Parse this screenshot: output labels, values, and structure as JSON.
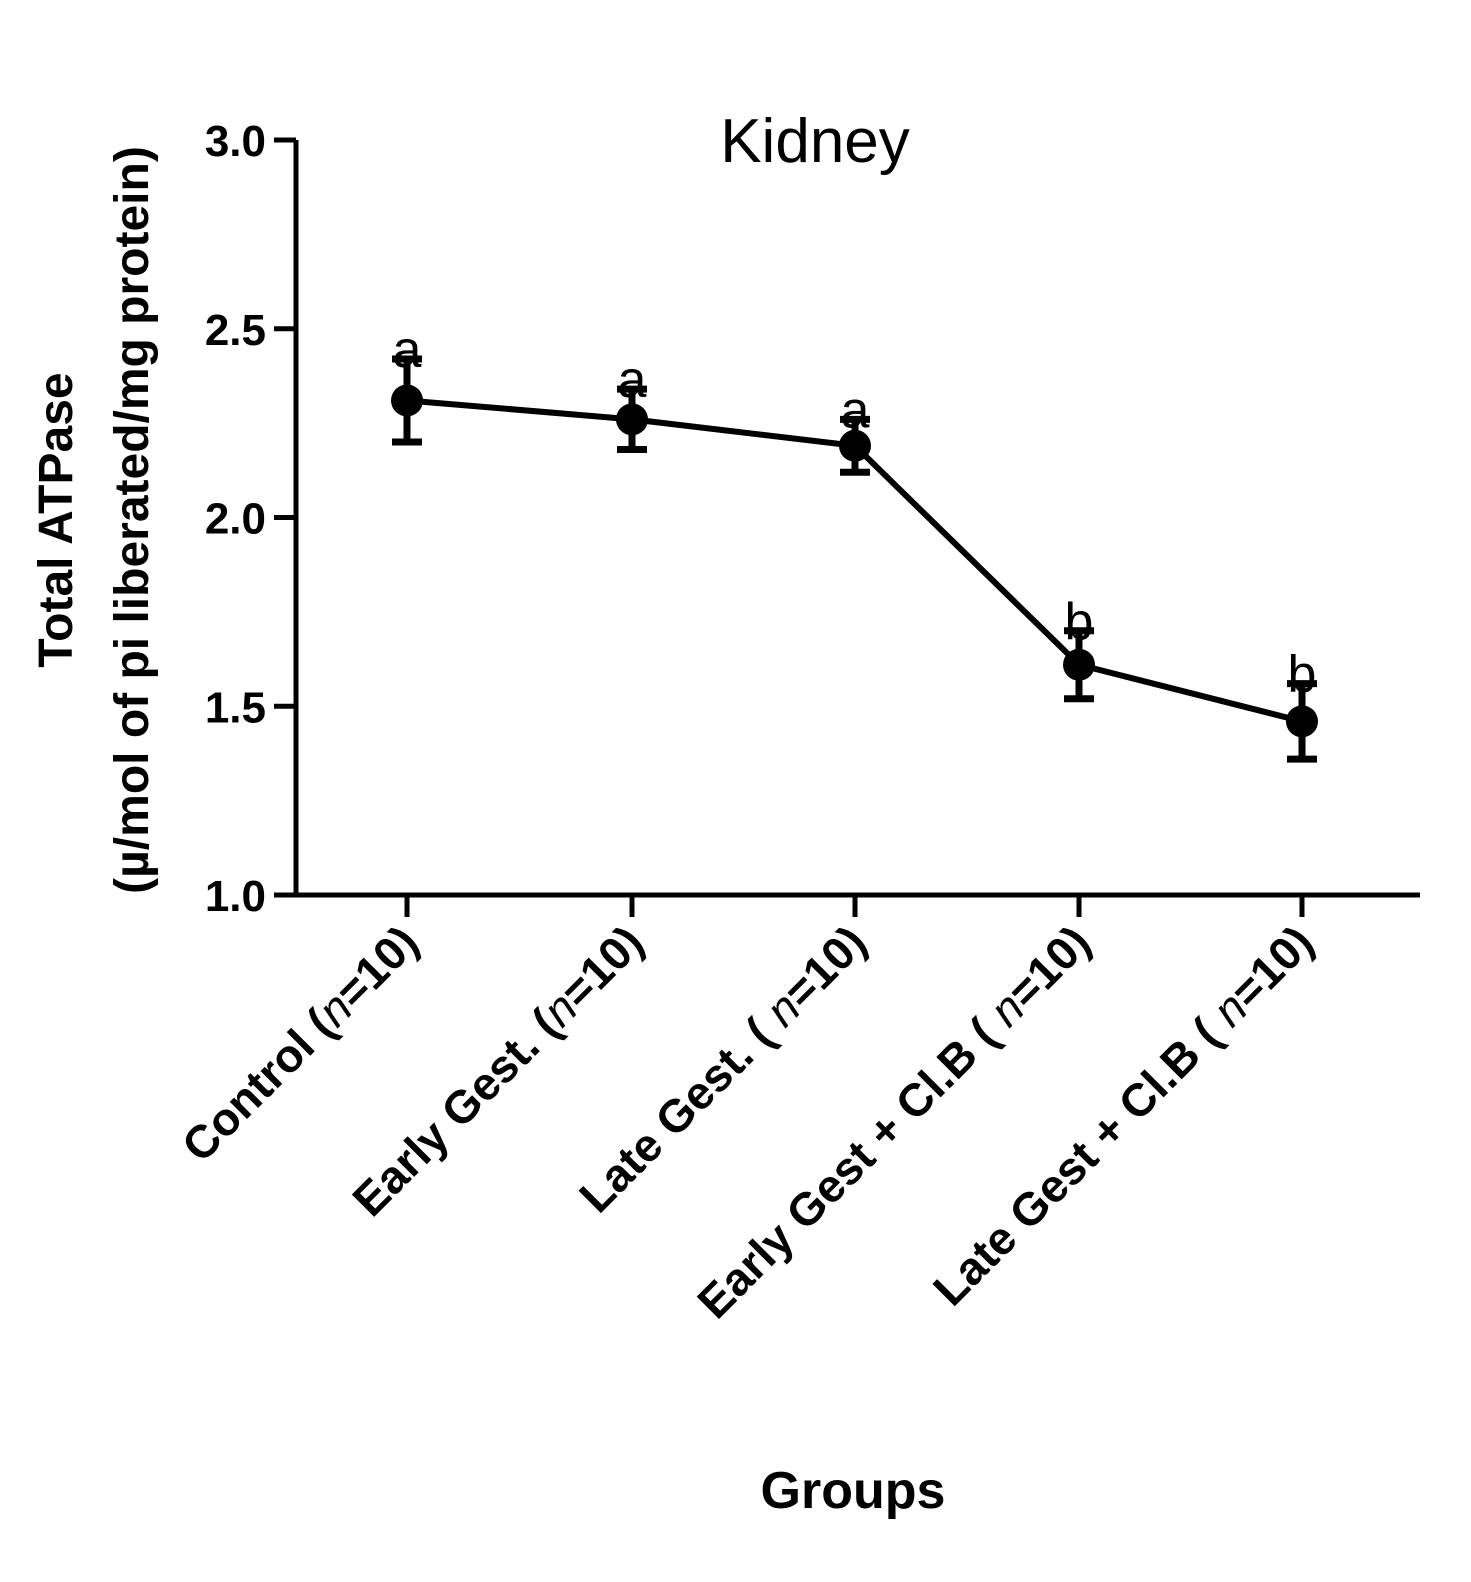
{
  "chart_data": {
    "type": "line",
    "title": "Kidney",
    "xlabel": "Groups",
    "ylabel_line1": "Total ATPase",
    "ylabel_line2": "(µ/mol of pi liberated/mg protein)",
    "ylim": [
      1.0,
      3.0
    ],
    "yticks": [
      "1.0",
      "1.5",
      "2.0",
      "2.5",
      "3.0"
    ],
    "categories": [
      {
        "base": "Control (",
        "n": "n",
        "tail": "=10)"
      },
      {
        "base": "Early Gest. (",
        "n": "n",
        "tail": "=10)"
      },
      {
        "base": "Late Gest. ( ",
        "n": "n",
        "tail": "=10)"
      },
      {
        "base": "Early Gest + Cl.B ( ",
        "n": "n",
        "tail": "=10)"
      },
      {
        "base": "Late Gest + Cl.B ( ",
        "n": "n",
        "tail": "=10)"
      }
    ],
    "series": [
      {
        "name": "Total ATPase",
        "values": [
          2.31,
          2.26,
          2.19,
          1.61,
          1.46
        ],
        "errors": [
          0.11,
          0.08,
          0.07,
          0.09,
          0.1
        ]
      }
    ],
    "annotations": [
      "a",
      "a",
      "a",
      "b",
      "b"
    ],
    "color": "#000000",
    "grid": false,
    "legend": "none"
  }
}
